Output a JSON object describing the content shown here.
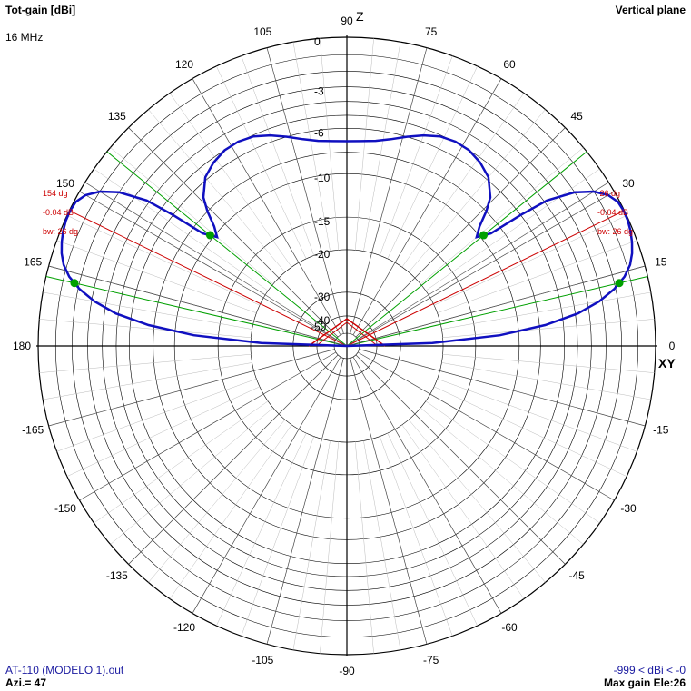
{
  "header": {
    "title": "Tot-gain [dBi]",
    "frequency": "16 MHz",
    "plane": "Vertical plane"
  },
  "footer": {
    "file": "AT-110 (MODELO 1).out",
    "azimuth": "Azi.= 47",
    "range": "-999 < dBi < -0",
    "max_gain": "Max gain Ele:26"
  },
  "axes": {
    "z_label": "Z",
    "xy_label": "XY",
    "angle_labels": [
      {
        "deg": 0,
        "text": "0"
      },
      {
        "deg": 15,
        "text": "15"
      },
      {
        "deg": 30,
        "text": "30"
      },
      {
        "deg": 45,
        "text": "45"
      },
      {
        "deg": 60,
        "text": "60"
      },
      {
        "deg": 75,
        "text": "75"
      },
      {
        "deg": 90,
        "text": "90"
      },
      {
        "deg": 105,
        "text": "105"
      },
      {
        "deg": 120,
        "text": "120"
      },
      {
        "deg": 135,
        "text": "135"
      },
      {
        "deg": 150,
        "text": "150"
      },
      {
        "deg": 165,
        "text": "165"
      },
      {
        "deg": 180,
        "text": "180"
      },
      {
        "deg": -15,
        "text": "-15"
      },
      {
        "deg": -30,
        "text": "-30"
      },
      {
        "deg": -45,
        "text": "-45"
      },
      {
        "deg": -60,
        "text": "-60"
      },
      {
        "deg": -75,
        "text": "-75"
      },
      {
        "deg": -90,
        "text": "-90"
      },
      {
        "deg": -105,
        "text": "-105"
      },
      {
        "deg": -120,
        "text": "-120"
      },
      {
        "deg": -135,
        "text": "-135"
      },
      {
        "deg": -150,
        "text": "-150"
      },
      {
        "deg": -165,
        "text": "-165"
      }
    ],
    "gain_rings": [
      {
        "db": 0,
        "text": "0"
      },
      {
        "db": -3,
        "text": "-3"
      },
      {
        "db": -6,
        "text": "-6"
      },
      {
        "db": -10,
        "text": "-10"
      },
      {
        "db": -15,
        "text": "-15"
      },
      {
        "db": -20,
        "text": "-20"
      },
      {
        "db": -30,
        "text": "-30"
      },
      {
        "db": -40,
        "text": "-40"
      },
      {
        "db": -50,
        "text": "-50"
      }
    ]
  },
  "chart_data": {
    "type": "polar",
    "angle_unit": "degrees elevation",
    "gain_unit": "dBi",
    "colors": {
      "pattern": "#1010c0",
      "max_gain": "#cc0000",
      "beamwidth": "#00a000",
      "grid": "#000000"
    },
    "pattern": {
      "angles": [
        0,
        2,
        4,
        6,
        8,
        10,
        12,
        14,
        16,
        18,
        20,
        22,
        24,
        26,
        28,
        30,
        32,
        34,
        36,
        37,
        38,
        40,
        42,
        44,
        46,
        50,
        54,
        58,
        62,
        66,
        70,
        74,
        78,
        82,
        86,
        90
      ],
      "gains": [
        -50,
        -22,
        -12,
        -7.5,
        -4.8,
        -3.2,
        -2.1,
        -1.3,
        -0.8,
        -0.5,
        -0.3,
        -0.15,
        -0.06,
        -0.04,
        -0.1,
        -0.4,
        -1.0,
        -2.0,
        -3.8,
        -6.0,
        -9.0,
        -10.3,
        -9.4,
        -8.0,
        -6.9,
        -5.8,
        -5.3,
        -5.0,
        -4.95,
        -5.1,
        -5.5,
        -6.0,
        -6.5,
        -6.85,
        -7.0,
        -7.05
      ],
      "symmetric_about": 90
    },
    "max_gain_left": {
      "angle_label": "154 dg",
      "gain_label": "-0.04 dB",
      "bw_label": "bw: 26 dg",
      "angle": 154
    },
    "max_gain_right": {
      "angle_label": "26 dg",
      "gain_label": "-0.04 dB",
      "bw_label": "bw: 26 dg",
      "angle": 26
    },
    "beamwidth_points": [
      13,
      39,
      141,
      167
    ],
    "aux_lines": [
      [
        32,
        15
      ],
      [
        148,
        165
      ]
    ]
  }
}
